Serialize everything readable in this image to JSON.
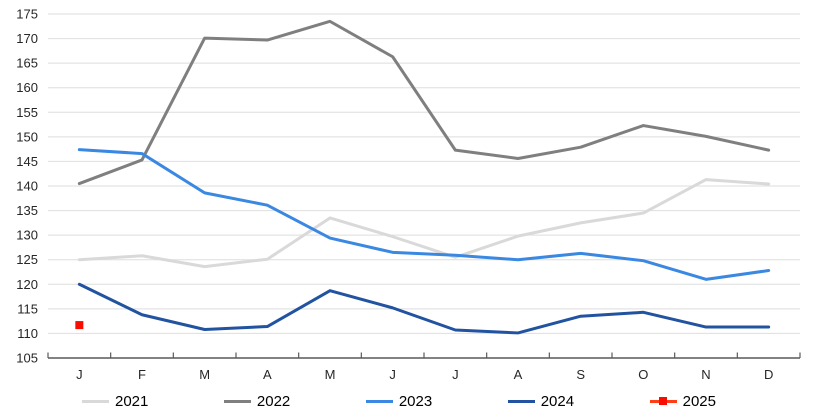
{
  "chart_data": {
    "type": "line",
    "x_labels": [
      "J",
      "F",
      "M",
      "A",
      "M",
      "J",
      "J",
      "A",
      "S",
      "O",
      "N",
      "D"
    ],
    "y_tick_labels": [
      "175",
      "170",
      "165",
      "160",
      "155",
      "150",
      "145",
      "140",
      "135",
      "130",
      "125",
      "120",
      "115",
      "110",
      "105"
    ],
    "ylim": [
      105,
      175
    ],
    "y_step": 5,
    "grid": "horizontal",
    "legend_position": "bottom",
    "series": [
      {
        "name": "2021",
        "color": "#d9d9d9",
        "values": [
          125.0,
          125.8,
          123.6,
          125.1,
          133.5,
          129.7,
          125.5,
          129.8,
          132.5,
          134.5,
          141.3,
          140.4
        ]
      },
      {
        "name": "2022",
        "color": "#7f7f7f",
        "values": [
          140.5,
          145.3,
          170.1,
          169.7,
          173.5,
          166.3,
          147.3,
          145.6,
          147.9,
          152.3,
          150.1,
          147.3
        ]
      },
      {
        "name": "2023",
        "color": "#3a88e2",
        "values": [
          147.4,
          146.6,
          138.6,
          136.1,
          129.4,
          126.5,
          125.9,
          125.0,
          126.3,
          124.8,
          121.0,
          122.8
        ]
      },
      {
        "name": "2024",
        "color": "#2153a1",
        "values": [
          120.0,
          113.8,
          110.8,
          111.4,
          118.7,
          115.2,
          110.7,
          110.1,
          113.5,
          114.3,
          111.3,
          111.3
        ]
      },
      {
        "name": "2025",
        "color": "#ff3d17",
        "marker": "square",
        "marker_color": "#f90d00",
        "values": [
          111.7
        ]
      }
    ]
  }
}
